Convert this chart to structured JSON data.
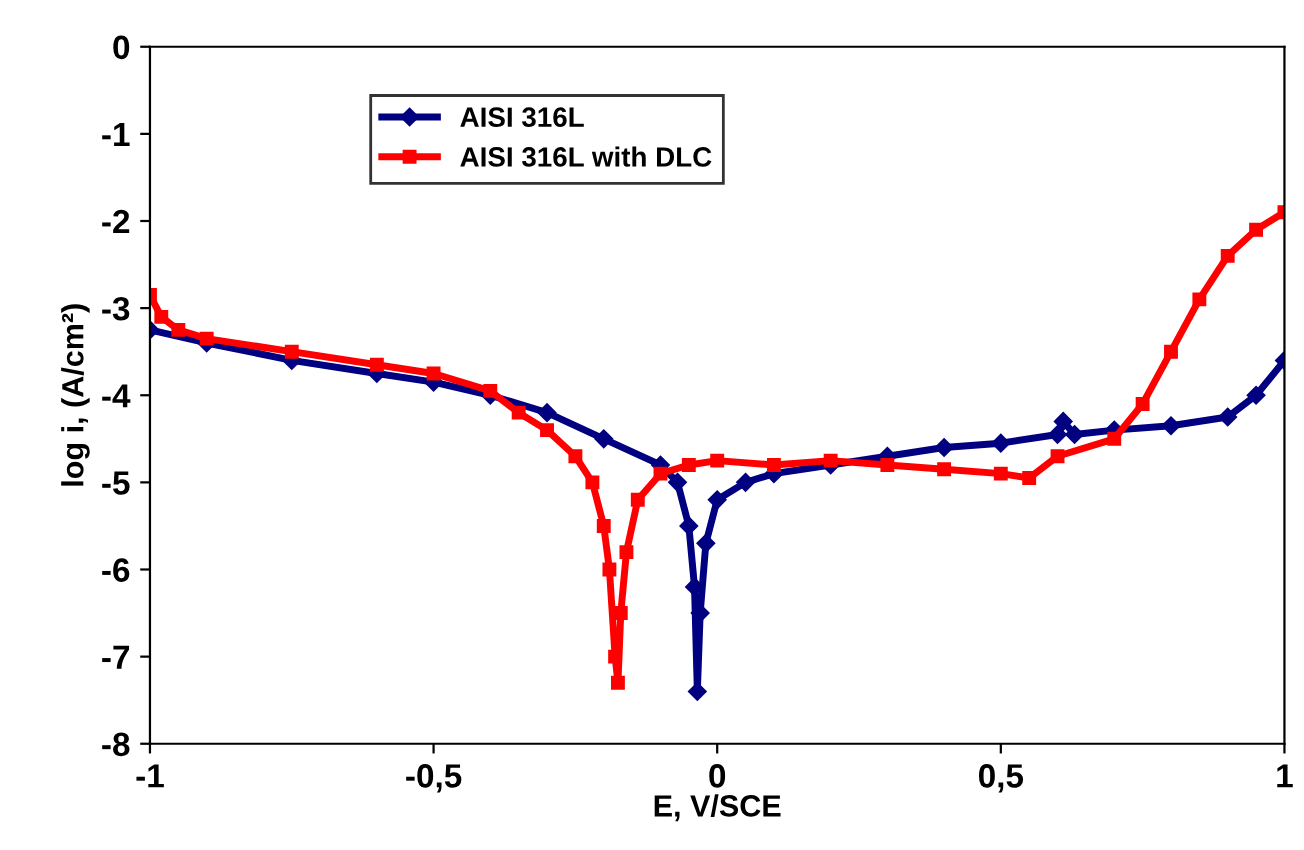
{
  "chart_data": {
    "type": "line",
    "xlabel": "E, V/SCE",
    "ylabel": "log i, (A/cm²)",
    "xlim": [
      -1,
      1
    ],
    "ylim": [
      -8,
      0
    ],
    "xticks": [
      -1,
      {
        "value": -0.5,
        "label": "-0,5"
      },
      0,
      {
        "value": 0.5,
        "label": "0,5"
      },
      1
    ],
    "yticks": [
      -8,
      -7,
      -6,
      -5,
      -4,
      -3,
      -2,
      -1,
      0
    ],
    "grid": false,
    "legend": "top",
    "series": [
      {
        "name": "AISI 316L",
        "color": "#000080",
        "marker": "diamond",
        "x": [
          -1,
          -0.9,
          -0.75,
          -0.6,
          -0.5,
          -0.4,
          -0.3,
          -0.2,
          -0.1,
          -0.07,
          -0.05,
          -0.04,
          -0.035,
          -0.03,
          -0.02,
          0,
          0.05,
          0.1,
          0.2,
          0.3,
          0.4,
          0.5,
          0.6,
          0.61,
          0.63,
          0.7,
          0.8,
          0.9,
          0.95,
          1.0
        ],
        "values": [
          -3.25,
          -3.4,
          -3.6,
          -3.75,
          -3.85,
          -4.0,
          -4.2,
          -4.5,
          -4.8,
          -5.0,
          -5.5,
          -6.2,
          -7.4,
          -6.5,
          -5.7,
          -5.2,
          -5.0,
          -4.9,
          -4.8,
          -4.7,
          -4.6,
          -4.55,
          -4.45,
          -4.3,
          -4.45,
          -4.4,
          -4.35,
          -4.25,
          -4.0,
          -3.6
        ]
      },
      {
        "name": "AISI 316L with DLC",
        "color": "#ff0000",
        "marker": "square",
        "x": [
          -1,
          -0.98,
          -0.95,
          -0.9,
          -0.75,
          -0.6,
          -0.5,
          -0.4,
          -0.35,
          -0.3,
          -0.25,
          -0.22,
          -0.2,
          -0.19,
          -0.18,
          -0.175,
          -0.17,
          -0.16,
          -0.14,
          -0.1,
          -0.05,
          0,
          0.1,
          0.2,
          0.3,
          0.4,
          0.5,
          0.55,
          0.6,
          0.7,
          0.75,
          0.8,
          0.85,
          0.9,
          0.95,
          1.0
        ],
        "values": [
          -2.85,
          -3.1,
          -3.25,
          -3.35,
          -3.5,
          -3.65,
          -3.75,
          -3.95,
          -4.2,
          -4.4,
          -4.7,
          -5.0,
          -5.5,
          -6.0,
          -7.0,
          -7.3,
          -6.5,
          -5.8,
          -5.2,
          -4.9,
          -4.8,
          -4.75,
          -4.8,
          -4.75,
          -4.8,
          -4.85,
          -4.9,
          -4.95,
          -4.7,
          -4.5,
          -4.1,
          -3.5,
          -2.9,
          -2.4,
          -2.1,
          -1.9
        ]
      }
    ]
  }
}
